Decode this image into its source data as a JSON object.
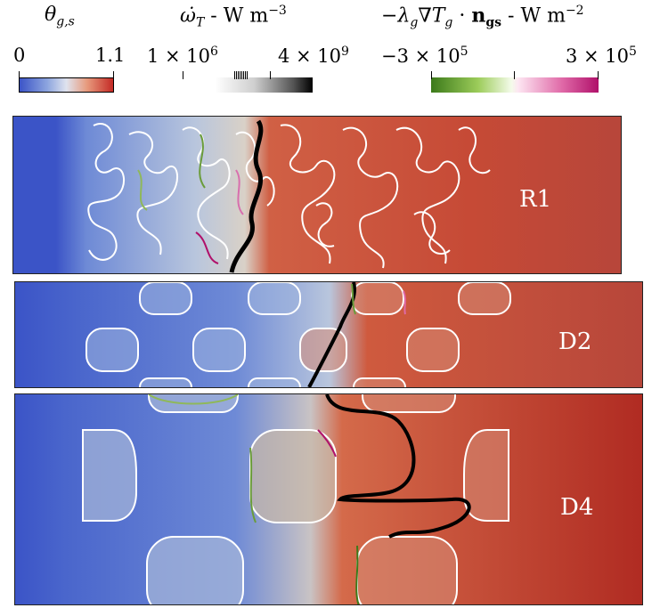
{
  "legends": {
    "theta": {
      "title": "θ_{g,s}",
      "min": "0",
      "max": "1.1",
      "colors": [
        "#3b54c7",
        "#dfe3ee",
        "#c42a25"
      ]
    },
    "omega": {
      "title": "ω̇_T - W m^{-3}",
      "min": "1 × 10^6",
      "max": "4 × 10^9",
      "colors": [
        "#ffffff",
        "#000000"
      ]
    },
    "flux": {
      "title": "−λ_g ∇T_g · n_gs - W m^{-2}",
      "min": "−3 × 10^5",
      "max": "3 × 10^5",
      "colors": [
        "#3c7a1a",
        "#f4fbea",
        "#b0106a"
      ]
    }
  },
  "panels": [
    {
      "label": "R1"
    },
    {
      "label": "D2"
    },
    {
      "label": "D4"
    }
  ]
}
